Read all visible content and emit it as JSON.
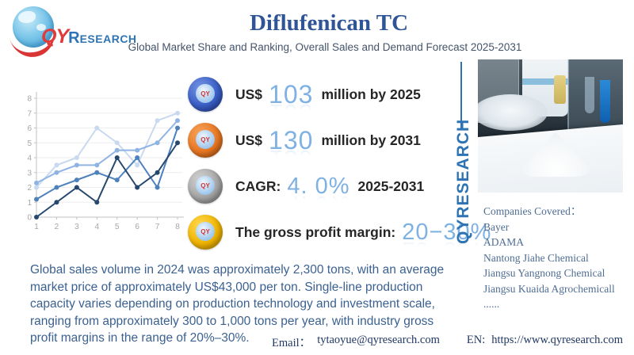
{
  "header": {
    "logo_qy": "QY",
    "logo_r": "R",
    "logo_esearch": "ESEARCH",
    "title": "Diflufenican TC",
    "subtitle": "Global Market Share and Ranking, Overall Sales and Demand Forecast 2025-2031"
  },
  "stats": [
    {
      "prefix": "US$",
      "value": "103",
      "suffix": "million by 2025",
      "icon": "globe-badge-blue",
      "badge_light": "#7293e2",
      "badge_color": "#3a5ec6",
      "badge_dark": "#2746a8",
      "mini_text": "QY"
    },
    {
      "prefix": "US$",
      "value": "130",
      "suffix": "million by 2031",
      "icon": "globe-badge-orange",
      "badge_light": "#f5a35c",
      "badge_color": "#e87722",
      "badge_dark": "#c25e0f",
      "mini_text": "QY"
    },
    {
      "prefix": "CAGR:",
      "value": "4. 0%",
      "suffix": "2025-2031",
      "icon": "globe-badge-gray",
      "badge_light": "#d2d2d2",
      "badge_color": "#a5a5a5",
      "badge_dark": "#8a8a8a",
      "mini_text": "QY"
    },
    {
      "prefix": "The gross profit margin:",
      "value": "20−30%",
      "suffix": "",
      "icon": "globe-badge-yellow",
      "badge_light": "#ffd84f",
      "badge_color": "#f0b400",
      "badge_dark": "#d49a00",
      "mini_text": "QY"
    }
  ],
  "chart_data": {
    "type": "line",
    "title": "",
    "xlabel": "",
    "ylabel": "",
    "x": [
      1,
      2,
      3,
      4,
      5,
      6,
      7,
      8
    ],
    "xticks": [
      "1",
      "2",
      "3",
      "4",
      "5",
      "6",
      "7",
      "8"
    ],
    "yticks": [
      0,
      1,
      2,
      3,
      4,
      5,
      6,
      7,
      8
    ],
    "ylim": [
      0,
      8
    ],
    "grid": true,
    "legend": false,
    "series": [
      {
        "name": "series-lightest",
        "color": "#c9d9ef",
        "values": [
          2,
          3.5,
          4,
          6,
          5,
          3.5,
          6.5,
          7
        ]
      },
      {
        "name": "series-light",
        "color": "#8fb4e3",
        "values": [
          2.3,
          3,
          3.5,
          3.5,
          4.5,
          4.5,
          5,
          6.5
        ]
      },
      {
        "name": "series-medium",
        "color": "#4f81bd",
        "values": [
          1.2,
          2,
          2.5,
          3,
          2.5,
          4,
          2,
          6
        ]
      },
      {
        "name": "series-dark",
        "color": "#27486e",
        "values": [
          0,
          1,
          2,
          1,
          4,
          2,
          3,
          5
        ]
      }
    ]
  },
  "right_column": {
    "vertical_brand": "QYRESEARCH",
    "companies_title": "Companies Covered：",
    "companies": [
      "Bayer",
      "ADAMA",
      "Nantong Jiahe Chemical",
      "Jiangsu Yangnong Chemical",
      "Jiangsu Kuaida Agrochemicall",
      "......"
    ]
  },
  "paragraph": "Global sales volume in 2024 was approximately 2,300 tons, with an average market price of approximately US$43,000 per ton. Single-line production capacity varies depending on production technology and investment scale, ranging from approximately 300 to 1,000 tons per year, with industry gross profit margins in the range of 20%–30%.",
  "footer": {
    "email_label": "Email：",
    "email": "tytaoyue@qyresearch.com",
    "en_label": "EN:",
    "url": "https://www.qyresearch.com"
  }
}
